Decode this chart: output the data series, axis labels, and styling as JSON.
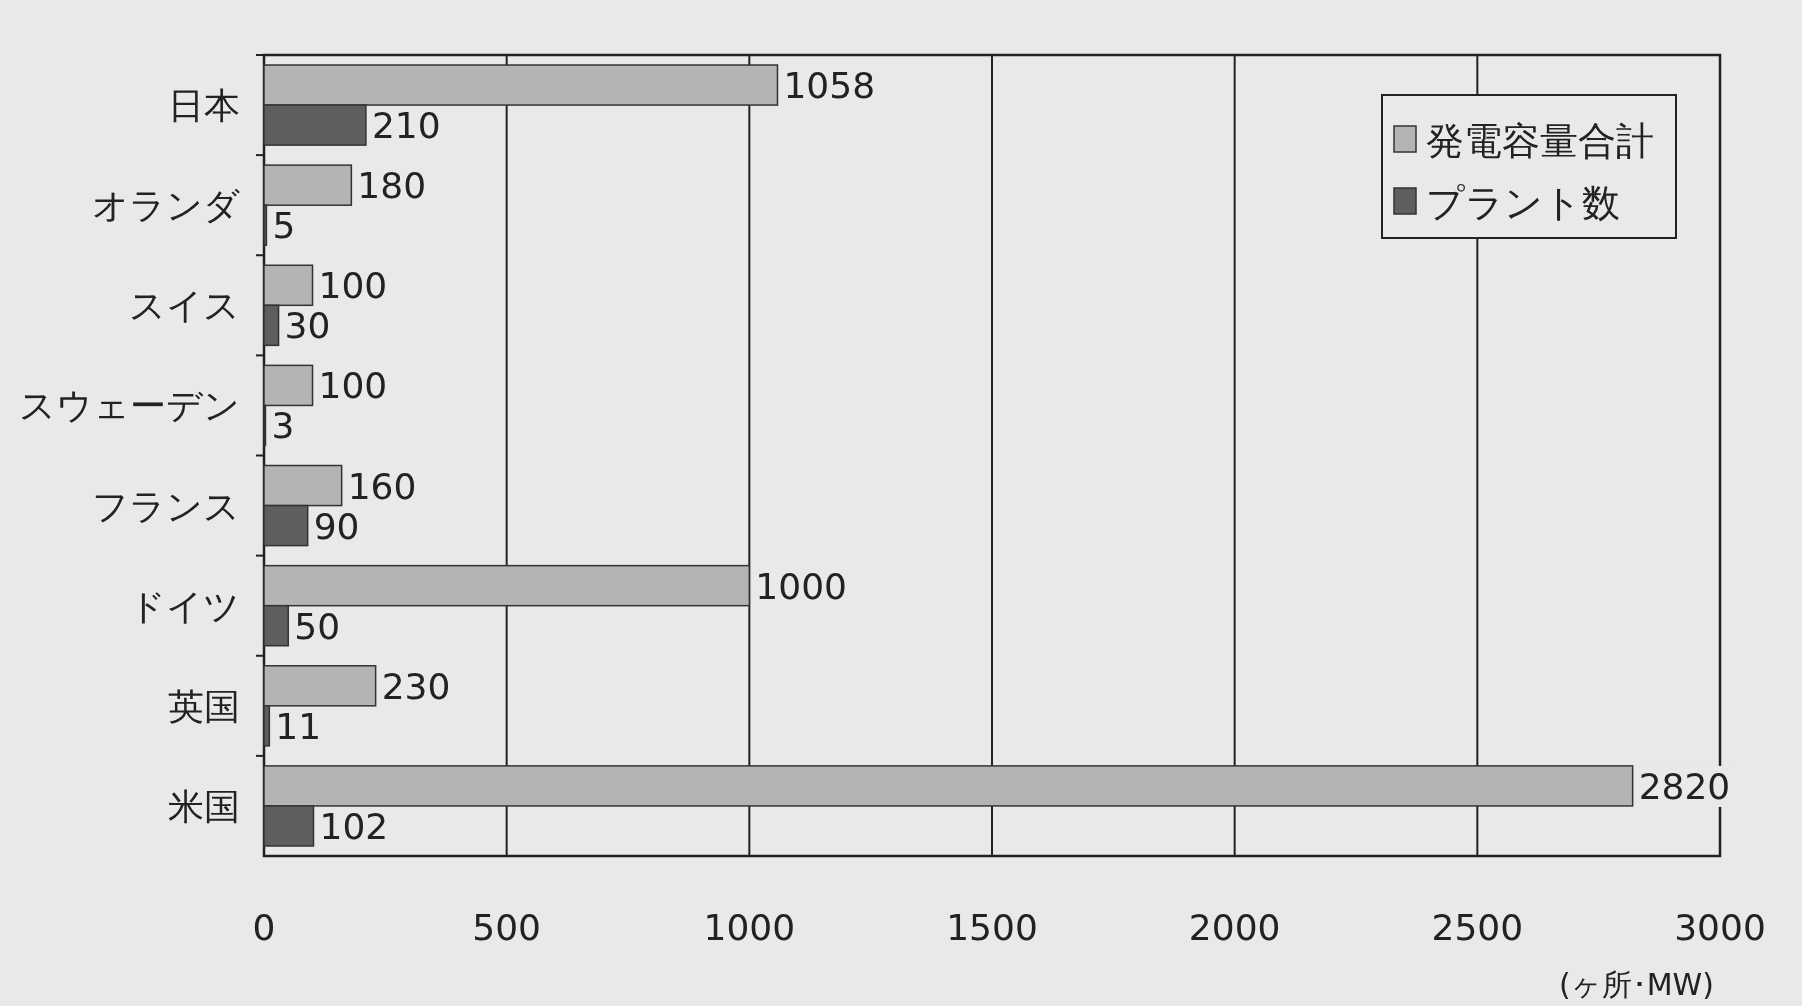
{
  "chart_data": {
    "type": "bar",
    "orientation": "horizontal",
    "categories": [
      "日本",
      "オランダ",
      "スイス",
      "スウェーデン",
      "フランス",
      "ドイツ",
      "英国",
      "米国"
    ],
    "series": [
      {
        "name": "発電容量合計",
        "color": "#b4b4b4",
        "values": [
          1058,
          180,
          100,
          100,
          160,
          1000,
          230,
          2820
        ]
      },
      {
        "name": "プラント数",
        "color": "#5e5e5e",
        "values": [
          210,
          5,
          30,
          3,
          90,
          50,
          11,
          102
        ]
      }
    ],
    "xlim": [
      0,
      3000
    ],
    "xticks": [
      0,
      500,
      1000,
      1500,
      2000,
      2500,
      3000
    ],
    "xlabel": "(ヶ所･MW)",
    "grid": "x",
    "legend": "top right",
    "data_labels": true
  }
}
